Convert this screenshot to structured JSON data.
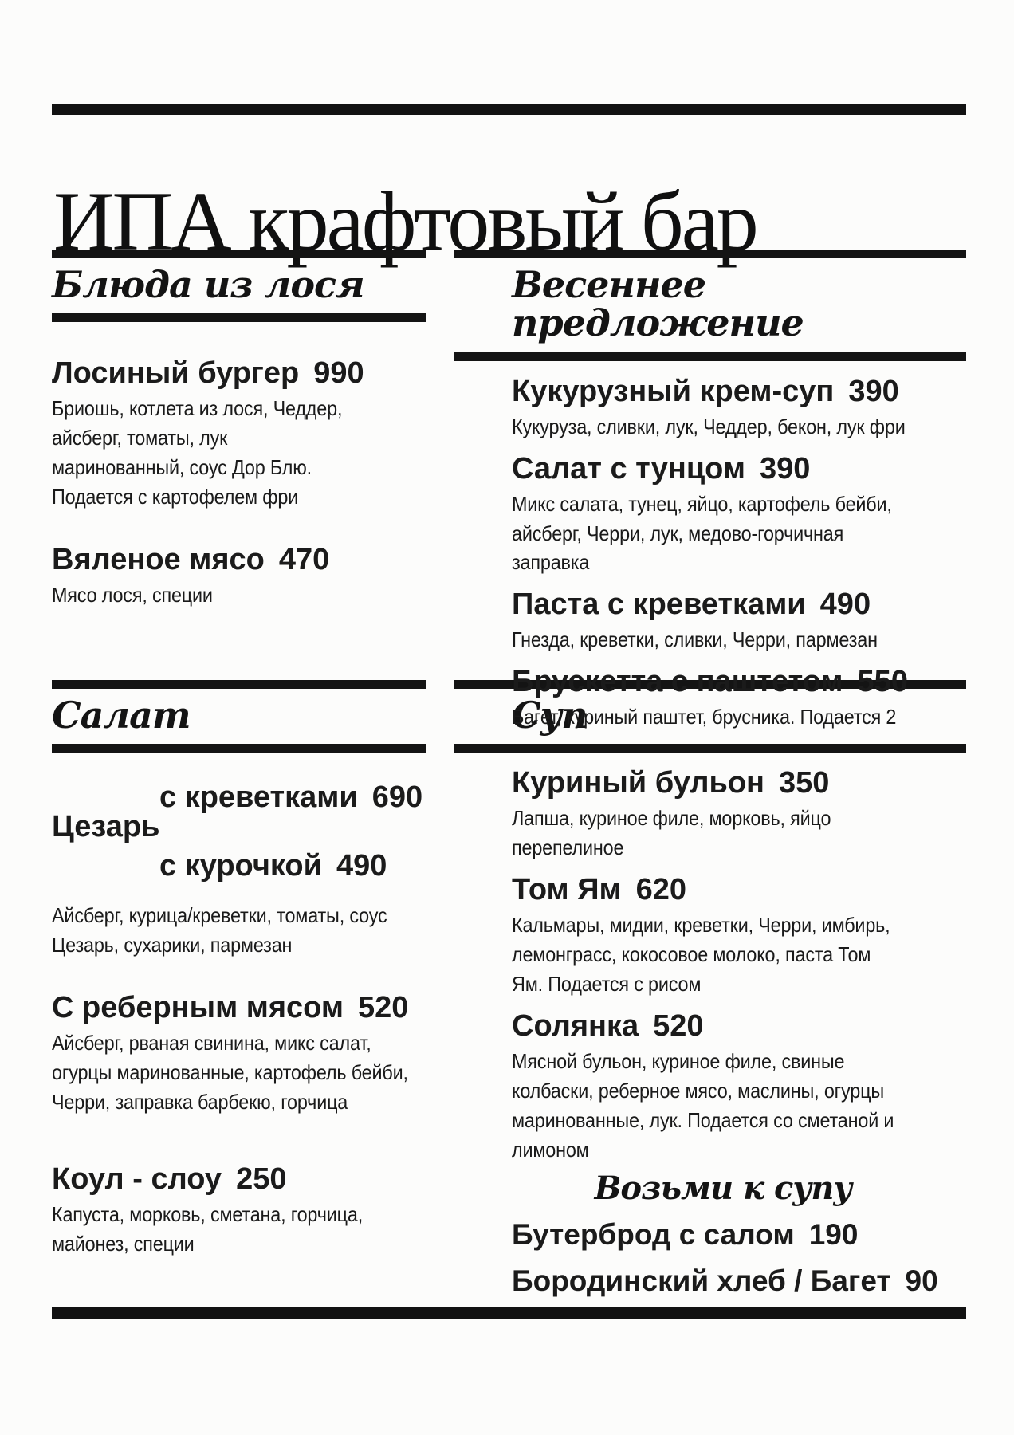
{
  "title": "ИПА крафтовый бар",
  "menu": {
    "moose": {
      "heading": "Блюда из лося",
      "items": [
        {
          "name": "Лосиный бургер",
          "price": "990",
          "desc": "Бриошь, котлета из лося, Чеддер,\nайсберг, томаты, лук\nмаринованный, соус Дор Блю.\nПодается с картофелем фри"
        },
        {
          "name": "Вяленое мясо",
          "price": "470",
          "desc": "Мясо лося, специи"
        }
      ]
    },
    "spring": {
      "heading": "Весеннее предложение",
      "items": [
        {
          "name": "Кукурузный крем-суп",
          "price": "390",
          "desc": "Кукуруза, сливки, лук, Чеддер, бекон, лук фри"
        },
        {
          "name": "Салат с тунцом",
          "price": "390",
          "desc": "Микс салата, тунец, яйцо, картофель бейби,\nайсберг, Черри, лук, медово-горчичная\nзаправка"
        },
        {
          "name": "Паста с креветками",
          "price": "490",
          "desc": "Гнезда, креветки, сливки, Черри, пармезан"
        },
        {
          "name": "Брускетта с паштетом",
          "price": "550",
          "desc": "Багет, куриный паштет, брусника. Подается 2"
        }
      ]
    },
    "salad": {
      "heading": "Салат",
      "caesar": {
        "name": "Цезарь",
        "options": [
          {
            "name": "с креветками",
            "price": "690"
          },
          {
            "name": "с курочкой",
            "price": "490"
          }
        ],
        "desc": "Айсберг, курица/креветки, томаты, соус\nЦезарь, сухарики, пармезан"
      },
      "items": [
        {
          "name": "С реберным мясом",
          "price": "520",
          "desc": "Айсберг, рваная свинина, микс салат,\nогурцы маринованные, картофель бейби,\nЧерри, заправка барбекю, горчица"
        },
        {
          "name": "Коул - слоу",
          "price": "250",
          "desc": "Капуста, морковь, сметана, горчица,\nмайонез, специи"
        }
      ]
    },
    "soup": {
      "heading": "Суп",
      "items": [
        {
          "name": "Куриный бульон",
          "price": "350",
          "desc": "Лапша, куриное филе, морковь, яйцо\nперепелиное"
        },
        {
          "name": "Том Ям",
          "price": "620",
          "desc": "Кальмары, мидии, креветки, Черри, имбирь,\nлемонграсс, кокосовое молоко, паста Том\nЯм. Подается с рисом"
        },
        {
          "name": "Солянка",
          "price": "520",
          "desc": "Мясной бульон, куриное филе, свиные\nколбаски, реберное мясо, маслины, огурцы\nмаринованные, лук. Подается со сметаной и\nлимоном"
        }
      ],
      "upsell_heading": "Возьми к супу",
      "upsell_items": [
        {
          "name": "Бутерброд с салом",
          "price": "190"
        },
        {
          "name": "Бородинский хлеб / Багет",
          "price": "90"
        }
      ]
    }
  }
}
